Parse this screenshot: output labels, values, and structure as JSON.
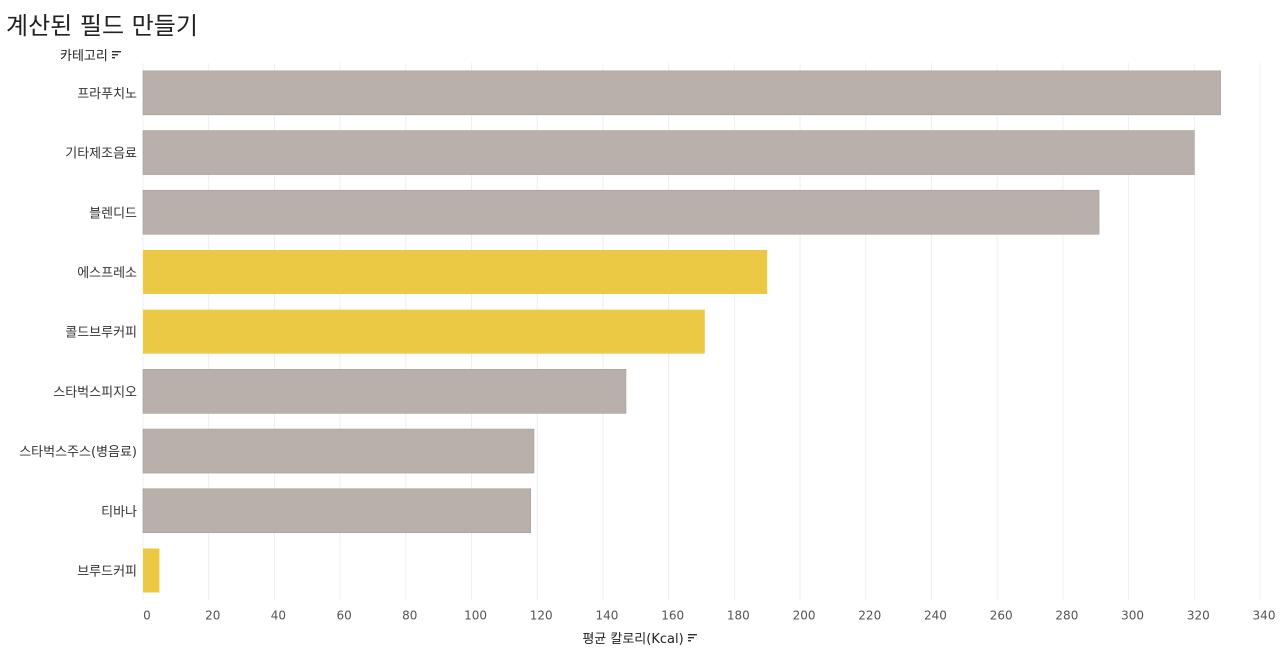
{
  "page": {
    "title": "계산된 필드 만들기"
  },
  "chart_data": {
    "type": "bar",
    "orientation": "horizontal",
    "category_field": "카테고리",
    "value_field": "평균 칼로리(Kcal)",
    "categories": [
      "프라푸치노",
      "기타제조음료",
      "블렌디드",
      "에스프레소",
      "콜드브루커피",
      "스타벅스피지오",
      "스타벅스주스(병음료)",
      "티바나",
      "브루드커피"
    ],
    "values": [
      328,
      320,
      291,
      190,
      171,
      147,
      119,
      118,
      5
    ],
    "highlighted": [
      false,
      false,
      false,
      true,
      true,
      false,
      false,
      false,
      true
    ],
    "colors": {
      "default": "#b9b0ab",
      "highlight": "#ecc944",
      "grid": "#efefef"
    },
    "xlim": [
      0,
      340
    ],
    "xticks": [
      0,
      20,
      40,
      60,
      80,
      100,
      120,
      140,
      160,
      180,
      200,
      220,
      240,
      260,
      280,
      300,
      320,
      340
    ],
    "grid": true,
    "legend": "none"
  }
}
